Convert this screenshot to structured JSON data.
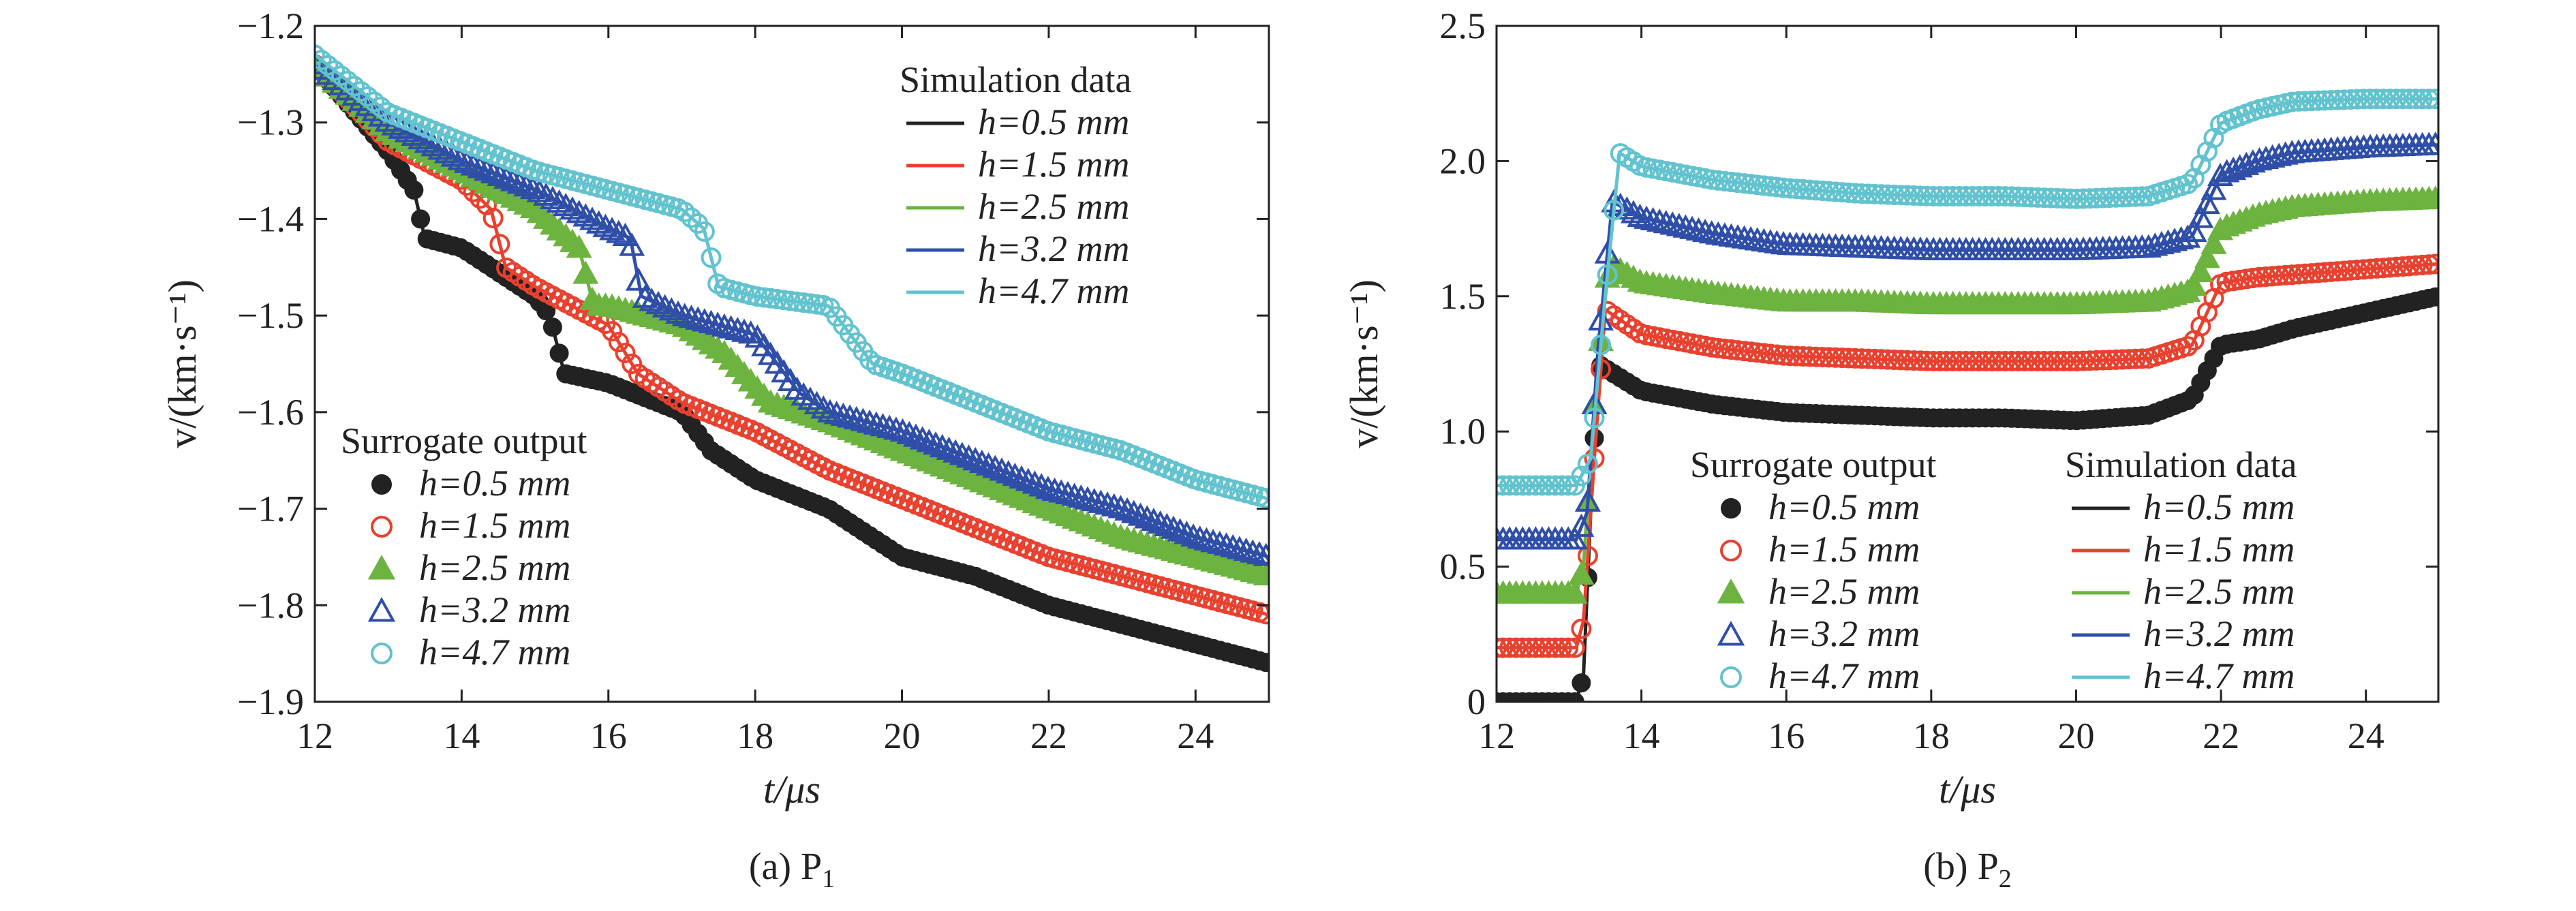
{
  "series_colors": {
    "h=0.5 mm": "#222222",
    "h=1.5 mm": "#e8412f",
    "h=2.5 mm": "#6db33f",
    "h=3.2 mm": "#2f4ea8",
    "h=4.7 mm": "#62c3cf"
  },
  "chart_data": [
    {
      "type": "line",
      "caption": "(a) P",
      "caption_sub": "1",
      "xlabel": "t/μs",
      "ylabel": "v/(km·s⁻¹)",
      "xlim": [
        12,
        25
      ],
      "ylim": [
        -1.9,
        -1.2
      ],
      "xticks": [
        12,
        14,
        16,
        18,
        20,
        22,
        24
      ],
      "xtick_labels": [
        "12",
        "14",
        "16",
        "18",
        "20",
        "22",
        "24"
      ],
      "yticks": [
        -1.9,
        -1.8,
        -1.7,
        -1.6,
        -1.5,
        -1.4,
        -1.3,
        -1.2
      ],
      "ytick_labels": [
        "−1.9",
        "−1.8",
        "−1.7",
        "−1.6",
        "−1.5",
        "−1.4",
        "−1.3",
        "−1.2"
      ],
      "legend_sim": {
        "title": "Simulation data",
        "placement": "top-right",
        "entries": [
          "h=0.5 mm",
          "h=1.5 mm",
          "h=2.5 mm",
          "h=3.2 mm",
          "h=4.7 mm"
        ]
      },
      "legend_sur": {
        "title": "Surrogate output",
        "placement": "bottom-left",
        "entries": [
          "h=0.5 mm",
          "h=1.5 mm",
          "h=2.5 mm",
          "h=3.2 mm",
          "h=4.7 mm"
        ]
      },
      "series": [
        {
          "name": "h=0.5 mm",
          "marker": "filled-circle",
          "x": [
            12,
            13,
            13.35,
            13.5,
            14,
            15,
            15.2,
            15.4,
            16,
            17,
            17.4,
            18,
            19,
            20,
            21,
            22,
            23,
            24,
            25
          ],
          "y": [
            -1.24,
            -1.33,
            -1.37,
            -1.42,
            -1.43,
            -1.48,
            -1.5,
            -1.56,
            -1.57,
            -1.6,
            -1.64,
            -1.67,
            -1.7,
            -1.75,
            -1.77,
            -1.8,
            -1.82,
            -1.84,
            -1.86
          ]
        },
        {
          "name": "h=1.5 mm",
          "marker": "open-circle",
          "x": [
            12,
            13,
            14,
            14.4,
            14.6,
            15,
            16,
            16.4,
            17,
            18,
            19,
            20,
            21,
            22,
            23,
            24,
            25
          ],
          "y": [
            -1.24,
            -1.32,
            -1.36,
            -1.39,
            -1.45,
            -1.47,
            -1.51,
            -1.56,
            -1.59,
            -1.62,
            -1.66,
            -1.69,
            -1.72,
            -1.75,
            -1.77,
            -1.79,
            -1.81
          ]
        },
        {
          "name": "h=2.5 mm",
          "marker": "filled-triangle",
          "x": [
            12,
            13,
            14,
            15,
            15.6,
            15.8,
            16,
            17,
            17.6,
            18.2,
            19,
            20,
            21,
            22,
            23,
            24,
            25
          ],
          "y": [
            -1.24,
            -1.31,
            -1.35,
            -1.39,
            -1.43,
            -1.49,
            -1.49,
            -1.51,
            -1.54,
            -1.59,
            -1.61,
            -1.64,
            -1.67,
            -1.7,
            -1.73,
            -1.75,
            -1.77
          ]
        },
        {
          "name": "h=3.2 mm",
          "marker": "open-triangle",
          "x": [
            12,
            13,
            14,
            15,
            16,
            16.3,
            16.45,
            17,
            18,
            18.3,
            18.6,
            19,
            20,
            21,
            22,
            23,
            24,
            25
          ],
          "y": [
            -1.24,
            -1.3,
            -1.34,
            -1.37,
            -1.41,
            -1.42,
            -1.48,
            -1.5,
            -1.52,
            -1.55,
            -1.58,
            -1.6,
            -1.62,
            -1.65,
            -1.68,
            -1.7,
            -1.73,
            -1.75
          ]
        },
        {
          "name": "h=4.7 mm",
          "marker": "open-circle",
          "x": [
            12,
            13,
            14,
            15,
            16,
            17,
            17.3,
            17.5,
            18,
            19,
            19.3,
            19.6,
            20,
            21,
            22,
            23,
            24,
            25
          ],
          "y": [
            -1.23,
            -1.29,
            -1.32,
            -1.35,
            -1.37,
            -1.39,
            -1.41,
            -1.47,
            -1.48,
            -1.49,
            -1.52,
            -1.55,
            -1.56,
            -1.59,
            -1.62,
            -1.64,
            -1.67,
            -1.69
          ]
        }
      ]
    },
    {
      "type": "line",
      "caption": "(b) P",
      "caption_sub": "2",
      "xlabel": "t/μs",
      "ylabel": "v/(km·s⁻¹)",
      "xlim": [
        12,
        25
      ],
      "ylim": [
        0,
        2.5
      ],
      "xticks": [
        12,
        14,
        16,
        18,
        20,
        22,
        24
      ],
      "xtick_labels": [
        "12",
        "14",
        "16",
        "18",
        "20",
        "22",
        "24"
      ],
      "yticks": [
        0,
        0.5,
        1.0,
        1.5,
        2.0,
        2.5
      ],
      "ytick_labels": [
        "0",
        "0.5",
        "1.0",
        "1.5",
        "2.0",
        "2.5"
      ],
      "legend_sur": {
        "title": "Surrogate output",
        "placement": "bottom-center",
        "entries": [
          "h=0.5 mm",
          "h=1.5 mm",
          "h=2.5 mm",
          "h=3.2 mm",
          "h=4.7 mm"
        ]
      },
      "legend_sim": {
        "title": "Simulation data",
        "placement": "bottom-right",
        "entries": [
          "h=0.5 mm",
          "h=1.5 mm",
          "h=2.5 mm",
          "h=3.2 mm",
          "h=4.7 mm"
        ]
      },
      "series": [
        {
          "name": "h=0.5 mm",
          "marker": "filled-circle",
          "x": [
            12,
            13.1,
            13.2,
            13.3,
            13.4,
            14,
            15,
            16,
            17,
            18,
            19,
            20,
            21,
            21.6,
            22,
            22.5,
            23,
            24,
            25
          ],
          "y": [
            0.0,
            0.0,
            0.1,
            0.7,
            1.25,
            1.15,
            1.1,
            1.07,
            1.06,
            1.05,
            1.05,
            1.04,
            1.06,
            1.12,
            1.32,
            1.34,
            1.38,
            1.44,
            1.5
          ]
        },
        {
          "name": "h=1.5 mm",
          "marker": "open-circle",
          "x": [
            12,
            13.1,
            13.2,
            13.35,
            13.5,
            14,
            15,
            16,
            17,
            18,
            19,
            20,
            21,
            21.6,
            22,
            22.5,
            23,
            24,
            25
          ],
          "y": [
            0.2,
            0.2,
            0.3,
            0.9,
            1.45,
            1.36,
            1.31,
            1.28,
            1.27,
            1.26,
            1.26,
            1.26,
            1.27,
            1.32,
            1.55,
            1.57,
            1.58,
            1.6,
            1.62
          ]
        },
        {
          "name": "h=2.5 mm",
          "marker": "filled-triangle",
          "x": [
            12,
            13.1,
            13.2,
            13.35,
            13.55,
            14,
            15,
            16,
            17,
            18,
            19,
            20,
            21,
            21.6,
            22,
            22.5,
            23,
            24,
            25
          ],
          "y": [
            0.4,
            0.4,
            0.5,
            1.1,
            1.62,
            1.55,
            1.51,
            1.48,
            1.48,
            1.47,
            1.47,
            1.47,
            1.48,
            1.52,
            1.75,
            1.8,
            1.83,
            1.85,
            1.86
          ]
        },
        {
          "name": "h=3.2 mm",
          "marker": "open-triangle",
          "x": [
            12,
            13.1,
            13.25,
            13.4,
            13.6,
            14,
            15,
            16,
            17,
            18,
            19,
            20,
            21,
            21.6,
            22,
            22.5,
            23,
            24,
            25
          ],
          "y": [
            0.6,
            0.6,
            0.7,
            1.3,
            1.85,
            1.79,
            1.73,
            1.69,
            1.68,
            1.67,
            1.67,
            1.67,
            1.68,
            1.72,
            1.95,
            2.0,
            2.03,
            2.05,
            2.06
          ]
        },
        {
          "name": "h=4.7 mm",
          "marker": "open-circle",
          "x": [
            12,
            13.1,
            13.3,
            13.5,
            13.7,
            14,
            15,
            16,
            17,
            18,
            19,
            20,
            21,
            21.6,
            22,
            22.5,
            23,
            24,
            25
          ],
          "y": [
            0.8,
            0.8,
            0.9,
            1.5,
            2.03,
            1.98,
            1.93,
            1.9,
            1.88,
            1.87,
            1.87,
            1.86,
            1.87,
            1.92,
            2.14,
            2.19,
            2.22,
            2.23,
            2.23
          ]
        }
      ]
    }
  ]
}
